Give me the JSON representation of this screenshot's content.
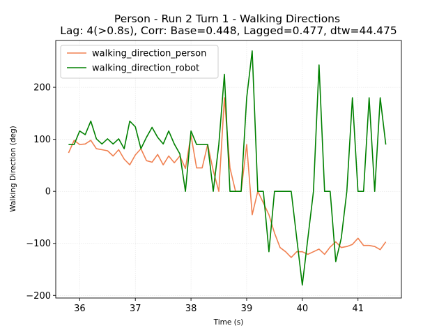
{
  "chart_data": {
    "type": "line",
    "title": "Person - Run 2 Turn 1 - Walking Directions",
    "subtitle": "Lag: 4(>0.8s), Corr: Base=0.448, Lagged=0.477, dtw=44.475",
    "xlabel": "Time (s)",
    "ylabel": "Walking Direction (deg)",
    "xlim": [
      35.57,
      41.78
    ],
    "ylim": [
      -205,
      290
    ],
    "xticks": [
      "36",
      "37",
      "38",
      "39",
      "40",
      "41"
    ],
    "yticks": [
      "−200",
      "−100",
      "0",
      "100",
      "200"
    ],
    "grid": true,
    "legend_position": "top-left",
    "series": [
      {
        "name": "walking_direction_person",
        "color": "#f08050",
        "x": [
          35.8,
          35.9,
          36.0,
          36.1,
          36.2,
          36.3,
          36.4,
          36.5,
          36.6,
          36.7,
          36.8,
          36.9,
          37.0,
          37.1,
          37.2,
          37.3,
          37.4,
          37.5,
          37.6,
          37.7,
          37.8,
          37.9,
          38.0,
          38.1,
          38.2,
          38.3,
          38.4,
          38.5,
          38.6,
          38.7,
          38.8,
          38.9,
          39.0,
          39.1,
          39.2,
          39.3,
          39.4,
          39.5,
          39.6,
          39.7,
          39.8,
          39.9,
          40.0,
          40.1,
          40.2,
          40.3,
          40.4,
          40.5,
          40.6,
          40.7,
          40.8,
          40.9,
          41.0,
          41.1,
          41.2,
          41.3,
          41.4,
          41.5
        ],
        "y": [
          74,
          98,
          90,
          91,
          98,
          82,
          80,
          78,
          68,
          80,
          62,
          51,
          70,
          82,
          59,
          56,
          71,
          51,
          68,
          55,
          68,
          44,
          108,
          45,
          45,
          90,
          40,
          0,
          180,
          45,
          0,
          0,
          90,
          -45,
          0,
          -22,
          -45,
          -80,
          -108,
          -116,
          -127,
          -116,
          -116,
          -121,
          -116,
          -111,
          -121,
          -107,
          -97,
          -108,
          -106,
          -102,
          -90,
          -104,
          -104,
          -106,
          -112,
          -97
        ]
      },
      {
        "name": "walking_direction_robot",
        "color": "#008000",
        "x": [
          35.8,
          35.9,
          36.0,
          36.1,
          36.2,
          36.3,
          36.4,
          36.5,
          36.6,
          36.7,
          36.8,
          36.9,
          37.0,
          37.1,
          37.2,
          37.3,
          37.4,
          37.5,
          37.6,
          37.7,
          37.8,
          37.9,
          38.0,
          38.1,
          38.2,
          38.3,
          38.4,
          38.5,
          38.6,
          38.7,
          38.8,
          38.9,
          39.0,
          39.1,
          39.2,
          39.3,
          39.4,
          39.5,
          39.6,
          39.7,
          39.8,
          39.9,
          40.0,
          40.1,
          40.2,
          40.3,
          40.4,
          40.5,
          40.6,
          40.7,
          40.8,
          40.9,
          41.0,
          41.1,
          41.2,
          41.3,
          41.4,
          41.5
        ],
        "y": [
          90,
          90,
          116,
          109,
          135,
          101,
          91,
          101,
          91,
          101,
          82,
          135,
          124,
          82,
          104,
          123,
          104,
          91,
          116,
          91,
          72,
          0,
          116,
          90,
          90,
          90,
          0,
          90,
          225,
          0,
          0,
          0,
          180,
          270,
          0,
          0,
          -116,
          0,
          0,
          0,
          0,
          -90,
          -180,
          -90,
          0,
          243,
          0,
          0,
          -135,
          -90,
          0,
          180,
          0,
          0,
          180,
          0,
          180,
          90
        ]
      }
    ]
  }
}
